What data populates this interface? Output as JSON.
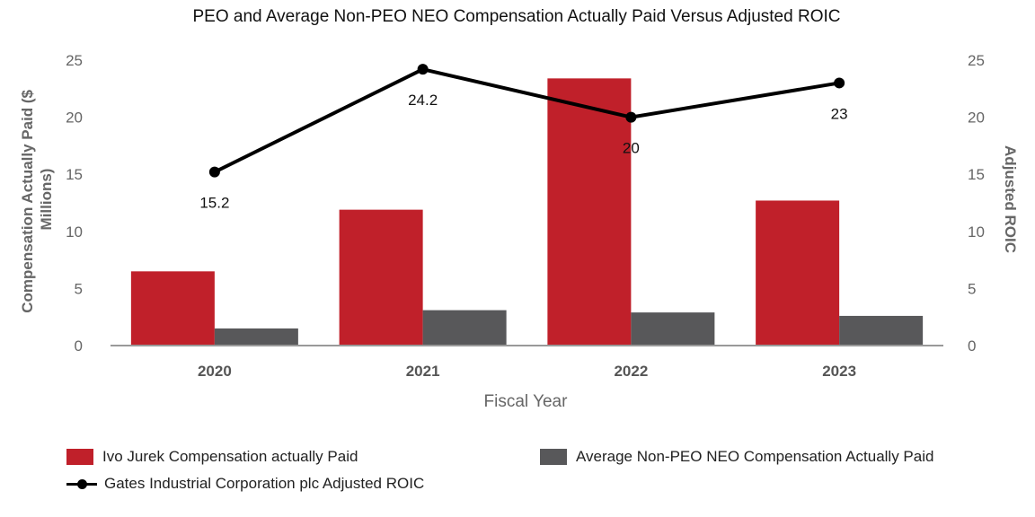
{
  "chart_data": {
    "type": "bar",
    "title": "PEO and Average Non-PEO NEO Compensation Actually Paid Versus Adjusted ROIC",
    "xlabel": "Fiscal Year",
    "ylabel": "Compensation Actually Paid ($ Millions)",
    "y2label": "Adjusted ROIC",
    "categories": [
      "2020",
      "2021",
      "2022",
      "2023"
    ],
    "ylim": [
      0,
      25
    ],
    "y2lim": [
      0,
      25
    ],
    "yticks": [
      "0",
      "5",
      "10",
      "15",
      "20",
      "25"
    ],
    "y2ticks": [
      "0",
      "5",
      "10",
      "15",
      "20",
      "25"
    ],
    "series": [
      {
        "name": "Ivo Jurek Compensation actually Paid",
        "type": "bar",
        "color": "#c0202a",
        "values": [
          6.5,
          11.9,
          23.4,
          12.7
        ]
      },
      {
        "name": "Average Non-PEO NEO Compensation Actually Paid",
        "type": "bar",
        "color": "#58585a",
        "values": [
          1.5,
          3.1,
          2.9,
          2.6
        ]
      },
      {
        "name": "Gates Industrial Corporation plc Adjusted ROIC",
        "type": "line",
        "axis": "right",
        "color": "#000000",
        "values": [
          15.2,
          24.2,
          20,
          23
        ],
        "labels": [
          "15.2",
          "24.2",
          "20",
          "23"
        ]
      }
    ],
    "grid": false,
    "legend_position": "bottom"
  }
}
